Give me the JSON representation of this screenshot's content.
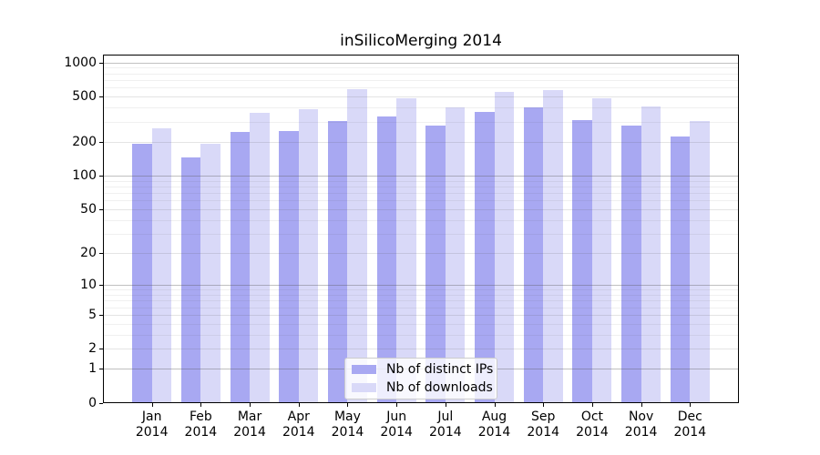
{
  "figure": {
    "background": "#ffffff"
  },
  "chart_data": {
    "type": "bar",
    "title": "inSilicoMerging 2014",
    "categories": [
      "Jan",
      "Feb",
      "Mar",
      "Apr",
      "May",
      "Jun",
      "Jul",
      "Aug",
      "Sep",
      "Oct",
      "Nov",
      "Dec"
    ],
    "category_year": "2014",
    "series": [
      {
        "name": "Nb of distinct IPs",
        "key": "distinct-ips",
        "color": "#a8a8f2",
        "values": [
          190,
          145,
          245,
          250,
          307,
          335,
          277,
          365,
          405,
          313,
          277,
          222
        ]
      },
      {
        "name": "Nb of downloads",
        "key": "downloads",
        "color": "#d9d9f8",
        "values": [
          262,
          190,
          362,
          390,
          577,
          480,
          405,
          547,
          570,
          480,
          408,
          304
        ]
      }
    ],
    "xlabel": "",
    "ylabel": "",
    "yscale": "log1p",
    "ylim": [
      0,
      1175
    ],
    "yticks_labeled": [
      0,
      1,
      2,
      5,
      10,
      20,
      50,
      100,
      200,
      500,
      1000
    ],
    "grid": true,
    "gridlines_decade": [
      1,
      10,
      100,
      1000
    ],
    "gridlines_labeled_mid": [
      2,
      5,
      20,
      50,
      200,
      500
    ],
    "gridlines_minor": [
      3,
      4,
      6,
      7,
      8,
      9,
      30,
      40,
      60,
      70,
      80,
      90,
      300,
      400,
      600,
      700,
      800,
      900
    ],
    "legend_position": "lower center"
  },
  "colors": {
    "spine": "#000000",
    "text": "#000000",
    "grid_decade": "rgba(90,90,90,0.38)",
    "grid_mid": "rgba(90,90,90,0.16)",
    "grid_minor": "rgba(90,90,90,0.09)",
    "legend_border": "#cccccc",
    "legend_background": "rgba(255,255,255,0.8)"
  }
}
